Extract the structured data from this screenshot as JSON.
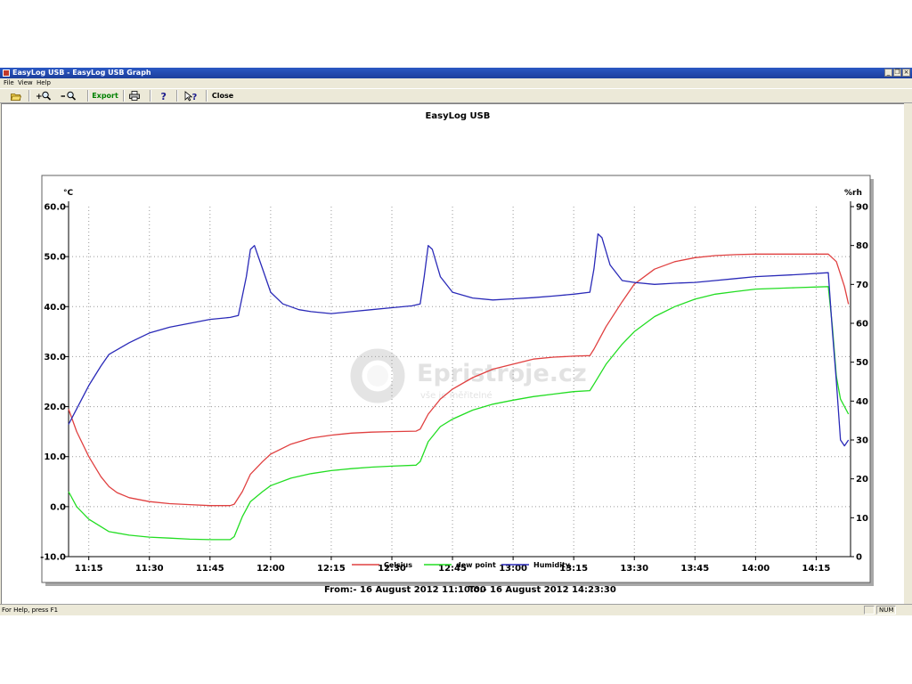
{
  "window": {
    "title": "EasyLog USB - EasyLog USB Graph",
    "controls": {
      "minimize": "_",
      "restore": "❐",
      "close": "×"
    }
  },
  "menu": [
    "File",
    "View",
    "Help"
  ],
  "toolbar": {
    "buttons": [
      {
        "name": "open",
        "icon": "folder-open-icon"
      },
      {
        "name": "zoom-in",
        "icon": "zoom-in-icon",
        "label": "+"
      },
      {
        "name": "zoom-out",
        "icon": "zoom-out-icon",
        "label": "−"
      },
      {
        "name": "export",
        "label": "Export"
      },
      {
        "name": "print",
        "icon": "printer-icon"
      },
      {
        "name": "help",
        "icon": "question-icon",
        "label": "?"
      },
      {
        "name": "context-help",
        "icon": "help-pointer-icon",
        "label": "?"
      },
      {
        "name": "close",
        "label": "Close"
      }
    ],
    "export_label": "Export",
    "close_label": "Close",
    "export_color": "#008000"
  },
  "status": {
    "help_text": "For Help, press F1",
    "num": "NUM"
  },
  "chart_data": {
    "type": "line",
    "title": "EasyLog USB",
    "y_left_unit": "°C",
    "y_right_unit": "%rh",
    "ylim_left": [
      -10,
      60
    ],
    "ylim_right": [
      0,
      90
    ],
    "left_ticks": [
      "60.0",
      "50.0",
      "40.0",
      "30.0",
      "20.0",
      "10.0",
      "0.0",
      "-10.0"
    ],
    "right_ticks": [
      "90",
      "80",
      "70",
      "60",
      "50",
      "40",
      "30",
      "20",
      "10",
      "0"
    ],
    "x_ticks": [
      "11:15",
      "11:30",
      "11:45",
      "12:00",
      "12:15",
      "12:30",
      "12:45",
      "13:00",
      "13:15",
      "13:30",
      "13:45",
      "14:00",
      "14:15"
    ],
    "x_range": [
      "11:10:00",
      "14:23:30"
    ],
    "grid": true,
    "legend_position": "bottom",
    "series": [
      {
        "name": "Celsius",
        "axis": "left",
        "color": "#e04040",
        "points": [
          [
            "11:10",
            19.5
          ],
          [
            "11:12",
            15
          ],
          [
            "11:15",
            10
          ],
          [
            "11:18",
            6
          ],
          [
            "11:20",
            4
          ],
          [
            "11:22",
            2.8
          ],
          [
            "11:25",
            1.8
          ],
          [
            "11:30",
            1.0
          ],
          [
            "11:35",
            0.6
          ],
          [
            "11:40",
            0.4
          ],
          [
            "11:45",
            0.2
          ],
          [
            "11:50",
            0.2
          ],
          [
            "11:51",
            0.5
          ],
          [
            "11:53",
            3
          ],
          [
            "11:55",
            6.5
          ],
          [
            "11:58",
            9
          ],
          [
            "12:00",
            10.5
          ],
          [
            "12:05",
            12.5
          ],
          [
            "12:10",
            13.7
          ],
          [
            "12:15",
            14.3
          ],
          [
            "12:20",
            14.7
          ],
          [
            "12:25",
            14.9
          ],
          [
            "12:30",
            15.0
          ],
          [
            "12:36",
            15.1
          ],
          [
            "12:37",
            15.5
          ],
          [
            "12:39",
            18.5
          ],
          [
            "12:42",
            21.5
          ],
          [
            "12:45",
            23.5
          ],
          [
            "12:50",
            25.8
          ],
          [
            "12:55",
            27.5
          ],
          [
            "13:00",
            28.5
          ],
          [
            "13:05",
            29.5
          ],
          [
            "13:10",
            29.9
          ],
          [
            "13:15",
            30.1
          ],
          [
            "13:19",
            30.2
          ],
          [
            "13:20",
            31.5
          ],
          [
            "13:23",
            36
          ],
          [
            "13:27",
            41
          ],
          [
            "13:30",
            44.5
          ],
          [
            "13:35",
            47.5
          ],
          [
            "13:40",
            49
          ],
          [
            "13:45",
            49.8
          ],
          [
            "13:50",
            50.2
          ],
          [
            "13:55",
            50.4
          ],
          [
            "14:00",
            50.5
          ],
          [
            "14:10",
            50.5
          ],
          [
            "14:18",
            50.5
          ],
          [
            "14:20",
            49
          ],
          [
            "14:22",
            44
          ],
          [
            "14:23",
            40.5
          ]
        ]
      },
      {
        "name": "dew point",
        "axis": "left",
        "color": "#22dd22",
        "points": [
          [
            "11:10",
            3
          ],
          [
            "11:12",
            0
          ],
          [
            "11:15",
            -2.5
          ],
          [
            "11:18",
            -4
          ],
          [
            "11:20",
            -5
          ],
          [
            "11:25",
            -5.7
          ],
          [
            "11:30",
            -6.1
          ],
          [
            "11:35",
            -6.3
          ],
          [
            "11:40",
            -6.5
          ],
          [
            "11:45",
            -6.6
          ],
          [
            "11:50",
            -6.6
          ],
          [
            "11:51",
            -6
          ],
          [
            "11:53",
            -2
          ],
          [
            "11:55",
            1
          ],
          [
            "11:58",
            3
          ],
          [
            "12:00",
            4.2
          ],
          [
            "12:05",
            5.7
          ],
          [
            "12:10",
            6.6
          ],
          [
            "12:15",
            7.2
          ],
          [
            "12:20",
            7.6
          ],
          [
            "12:25",
            7.9
          ],
          [
            "12:30",
            8.1
          ],
          [
            "12:36",
            8.3
          ],
          [
            "12:37",
            9
          ],
          [
            "12:39",
            13
          ],
          [
            "12:42",
            16
          ],
          [
            "12:45",
            17.5
          ],
          [
            "12:50",
            19.3
          ],
          [
            "12:55",
            20.5
          ],
          [
            "13:00",
            21.3
          ],
          [
            "13:05",
            22
          ],
          [
            "13:10",
            22.5
          ],
          [
            "13:15",
            23
          ],
          [
            "13:19",
            23.2
          ],
          [
            "13:20",
            24.5
          ],
          [
            "13:23",
            28.5
          ],
          [
            "13:27",
            32.5
          ],
          [
            "13:30",
            35
          ],
          [
            "13:35",
            38
          ],
          [
            "13:40",
            40
          ],
          [
            "13:45",
            41.5
          ],
          [
            "13:50",
            42.5
          ],
          [
            "13:55",
            43
          ],
          [
            "14:00",
            43.5
          ],
          [
            "14:10",
            43.8
          ],
          [
            "14:18",
            44
          ],
          [
            "14:19",
            36
          ],
          [
            "14:20",
            26
          ],
          [
            "14:21",
            21.5
          ],
          [
            "14:23",
            18.5
          ]
        ]
      },
      {
        "name": "Humidity",
        "axis": "right",
        "color": "#2a2ab8",
        "points": [
          [
            "11:10",
            34
          ],
          [
            "11:12",
            38
          ],
          [
            "11:15",
            44
          ],
          [
            "11:18",
            49
          ],
          [
            "11:20",
            52
          ],
          [
            "11:25",
            55
          ],
          [
            "11:30",
            57.5
          ],
          [
            "11:35",
            59
          ],
          [
            "11:40",
            60
          ],
          [
            "11:45",
            61
          ],
          [
            "11:50",
            61.5
          ],
          [
            "11:52",
            62
          ],
          [
            "11:54",
            72
          ],
          [
            "11:55",
            79
          ],
          [
            "11:56",
            80
          ],
          [
            "11:58",
            74
          ],
          [
            "12:00",
            68
          ],
          [
            "12:03",
            65
          ],
          [
            "12:07",
            63.5
          ],
          [
            "12:10",
            63
          ],
          [
            "12:15",
            62.5
          ],
          [
            "12:20",
            63
          ],
          [
            "12:25",
            63.5
          ],
          [
            "12:30",
            64
          ],
          [
            "12:35",
            64.5
          ],
          [
            "12:37",
            65
          ],
          [
            "12:38",
            72
          ],
          [
            "12:39",
            80
          ],
          [
            "12:40",
            79
          ],
          [
            "12:42",
            72
          ],
          [
            "12:45",
            68
          ],
          [
            "12:50",
            66.5
          ],
          [
            "12:55",
            66
          ],
          [
            "13:00",
            66.3
          ],
          [
            "13:05",
            66.6
          ],
          [
            "13:10",
            67
          ],
          [
            "13:15",
            67.5
          ],
          [
            "13:19",
            68
          ],
          [
            "13:20",
            74
          ],
          [
            "13:21",
            83
          ],
          [
            "13:22",
            82
          ],
          [
            "13:24",
            75
          ],
          [
            "13:27",
            71
          ],
          [
            "13:30",
            70.5
          ],
          [
            "13:35",
            70
          ],
          [
            "13:40",
            70.3
          ],
          [
            "13:45",
            70.5
          ],
          [
            "13:50",
            71
          ],
          [
            "13:55",
            71.5
          ],
          [
            "14:00",
            72
          ],
          [
            "14:10",
            72.5
          ],
          [
            "14:18",
            73
          ],
          [
            "14:19",
            58
          ],
          [
            "14:20",
            45
          ],
          [
            "14:21",
            30
          ],
          [
            "14:22",
            28.5
          ],
          [
            "14:23",
            30
          ]
        ]
      }
    ]
  },
  "footer": {
    "from": "From:-  16 August 2012 11:10:00",
    "to": "To:-  16 August 2012 14:23:30"
  },
  "watermark": {
    "brand": "Epristroje.cz",
    "tagline": "vše je měřitelné"
  }
}
